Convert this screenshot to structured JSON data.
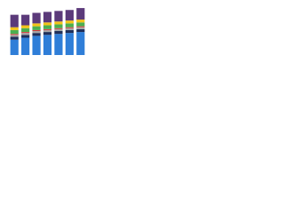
{
  "chart_data": {
    "type": "stacked-bar",
    "categories": [
      null,
      null,
      null,
      null,
      null,
      null,
      null
    ],
    "series": [
      {
        "color": "#2f7ed8",
        "values": [
          16,
          18,
          20,
          21,
          22,
          23,
          24
        ]
      },
      {
        "color": "#1f2f5a",
        "values": [
          3,
          3,
          3,
          3,
          3,
          3,
          3
        ]
      },
      {
        "color": "#a5a5a5",
        "values": [
          2,
          2,
          2,
          2,
          2,
          2,
          2
        ]
      },
      {
        "color": "#d9363e",
        "values": [
          1,
          1,
          1,
          1,
          1,
          1,
          1
        ]
      },
      {
        "color": "#4caf50",
        "values": [
          4,
          4,
          4,
          4,
          4,
          4,
          4
        ]
      },
      {
        "color": "#f2c318",
        "values": [
          3,
          3,
          3,
          3,
          3,
          3,
          3
        ]
      },
      {
        "color": "#5b3a7a",
        "values": [
          13,
          11,
          11,
          11,
          11,
          11,
          12
        ]
      }
    ],
    "ylim": [
      0,
      50
    ]
  }
}
